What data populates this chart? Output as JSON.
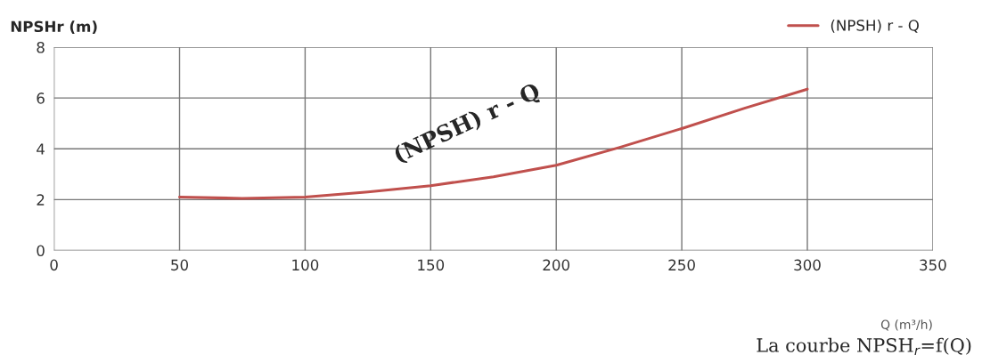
{
  "chart_data": {
    "type": "line",
    "ylabel": "NPSHr (m)",
    "xlabel": "Q (m³/h)",
    "x": [
      50,
      75,
      100,
      125,
      150,
      175,
      200,
      225,
      250,
      275,
      300
    ],
    "series": [
      {
        "name": "(NPSH) r - Q",
        "color": "#c0504d",
        "values": [
          2.1,
          2.05,
          2.1,
          2.3,
          2.55,
          2.9,
          3.35,
          4.05,
          4.8,
          5.6,
          6.35
        ]
      }
    ],
    "xlim": [
      0,
      350
    ],
    "xticks": [
      0,
      50,
      100,
      150,
      200,
      250,
      300,
      350
    ],
    "ylim": [
      0,
      8
    ],
    "yticks": [
      0,
      2,
      4,
      6,
      8
    ],
    "grid": true,
    "legend": "top right",
    "marker": "none",
    "line_style": "solid",
    "annotations": [
      "(NPSH) r - Q",
      "La courbe NPSH$_{r}$=f(Q)"
    ]
  }
}
